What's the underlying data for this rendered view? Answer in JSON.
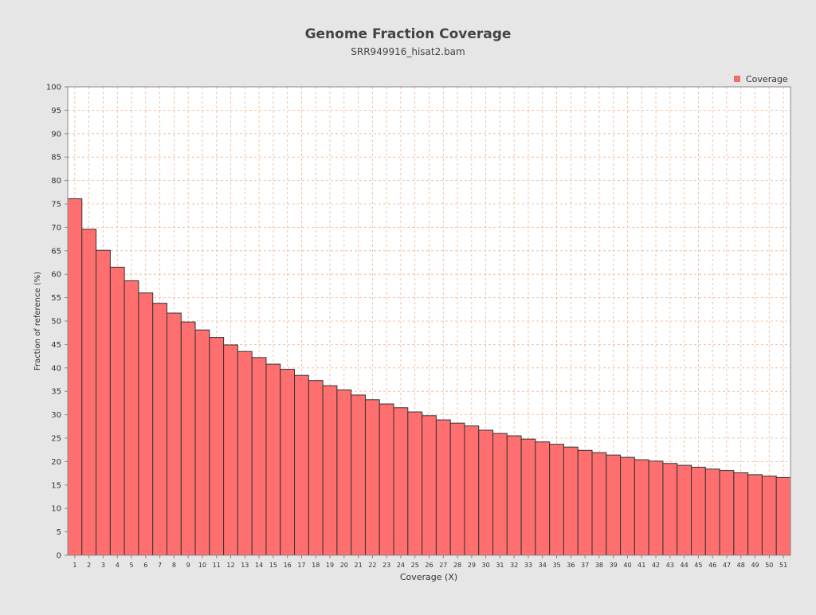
{
  "chart_data": {
    "type": "bar",
    "title": "Genome Fraction Coverage",
    "subtitle": "SRR949916_hisat2.bam",
    "xlabel": "Coverage (X)",
    "ylabel": "Fraction of reference (%)",
    "ylim": [
      0,
      100
    ],
    "yticks": [
      0,
      5,
      10,
      15,
      20,
      25,
      30,
      35,
      40,
      45,
      50,
      55,
      60,
      65,
      70,
      75,
      80,
      85,
      90,
      95,
      100
    ],
    "grid": true,
    "legend": {
      "placement": "top-right",
      "entries": [
        "Coverage"
      ]
    },
    "colors": {
      "bar": "#ff6f6f",
      "bar_stroke": "#333333",
      "grid": "#efb48a",
      "background": "#e6e6e6",
      "plot_bg": "#ffffff",
      "legend_marker": "#ee6e6e"
    },
    "categories": [
      "1",
      "2",
      "3",
      "4",
      "5",
      "6",
      "7",
      "8",
      "9",
      "10",
      "11",
      "12",
      "13",
      "14",
      "15",
      "16",
      "17",
      "18",
      "19",
      "20",
      "21",
      "22",
      "23",
      "24",
      "25",
      "26",
      "27",
      "28",
      "29",
      "30",
      "31",
      "32",
      "33",
      "34",
      "35",
      "36",
      "37",
      "38",
      "39",
      "40",
      "41",
      "42",
      "43",
      "44",
      "45",
      "46",
      "47",
      "48",
      "49",
      "50",
      "51"
    ],
    "series": [
      {
        "name": "Coverage",
        "values": [
          76.1,
          69.6,
          65.1,
          61.5,
          58.6,
          56.0,
          53.8,
          51.7,
          49.8,
          48.1,
          46.5,
          44.9,
          43.5,
          42.2,
          40.8,
          39.7,
          38.4,
          37.3,
          36.2,
          35.3,
          34.2,
          33.2,
          32.3,
          31.5,
          30.6,
          29.8,
          28.9,
          28.2,
          27.6,
          26.7,
          26.0,
          25.5,
          24.8,
          24.2,
          23.7,
          23.1,
          22.4,
          21.9,
          21.4,
          20.9,
          20.4,
          20.1,
          19.6,
          19.2,
          18.8,
          18.4,
          18.1,
          17.6,
          17.2,
          16.9,
          16.6
        ]
      }
    ]
  }
}
